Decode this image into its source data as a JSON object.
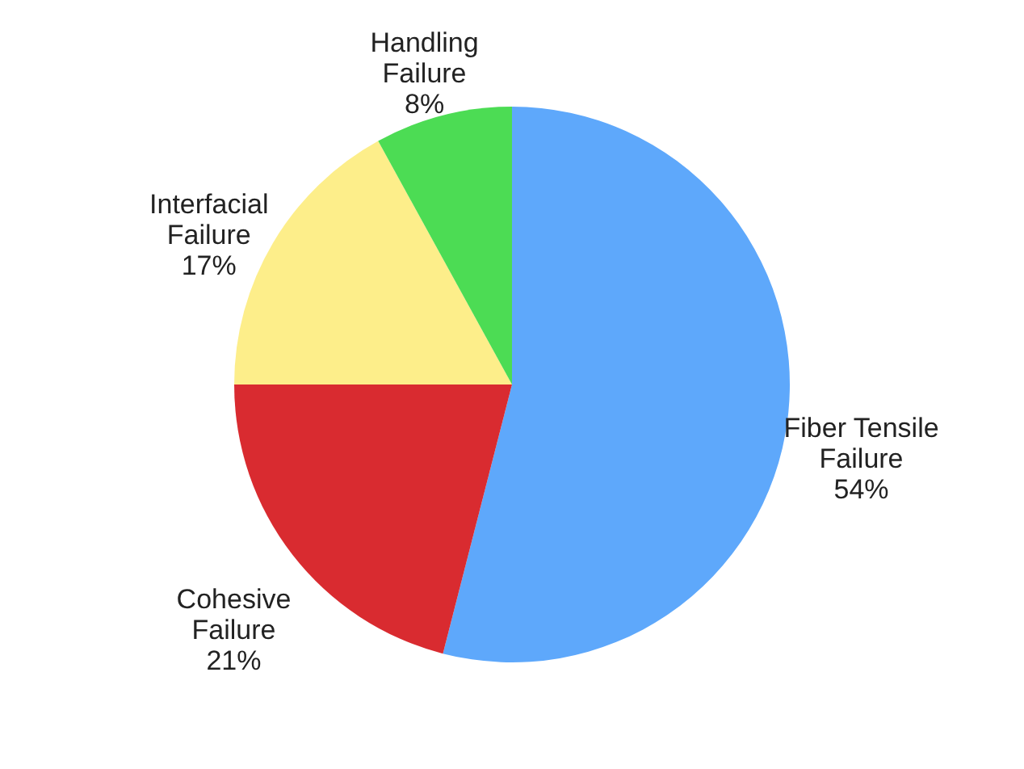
{
  "chart_data": {
    "type": "pie",
    "categories": [
      "Fiber Tensile\nFailure",
      "Cohesive\nFailure",
      "Interfacial\nFailure",
      "Handling\nFailure"
    ],
    "values": [
      54,
      21,
      17,
      8
    ],
    "value_labels": [
      "54%",
      "21%",
      "17%",
      "8%"
    ],
    "colors": [
      "#5ea8fb",
      "#d92b30",
      "#fdee8a",
      "#4cdc54"
    ]
  }
}
